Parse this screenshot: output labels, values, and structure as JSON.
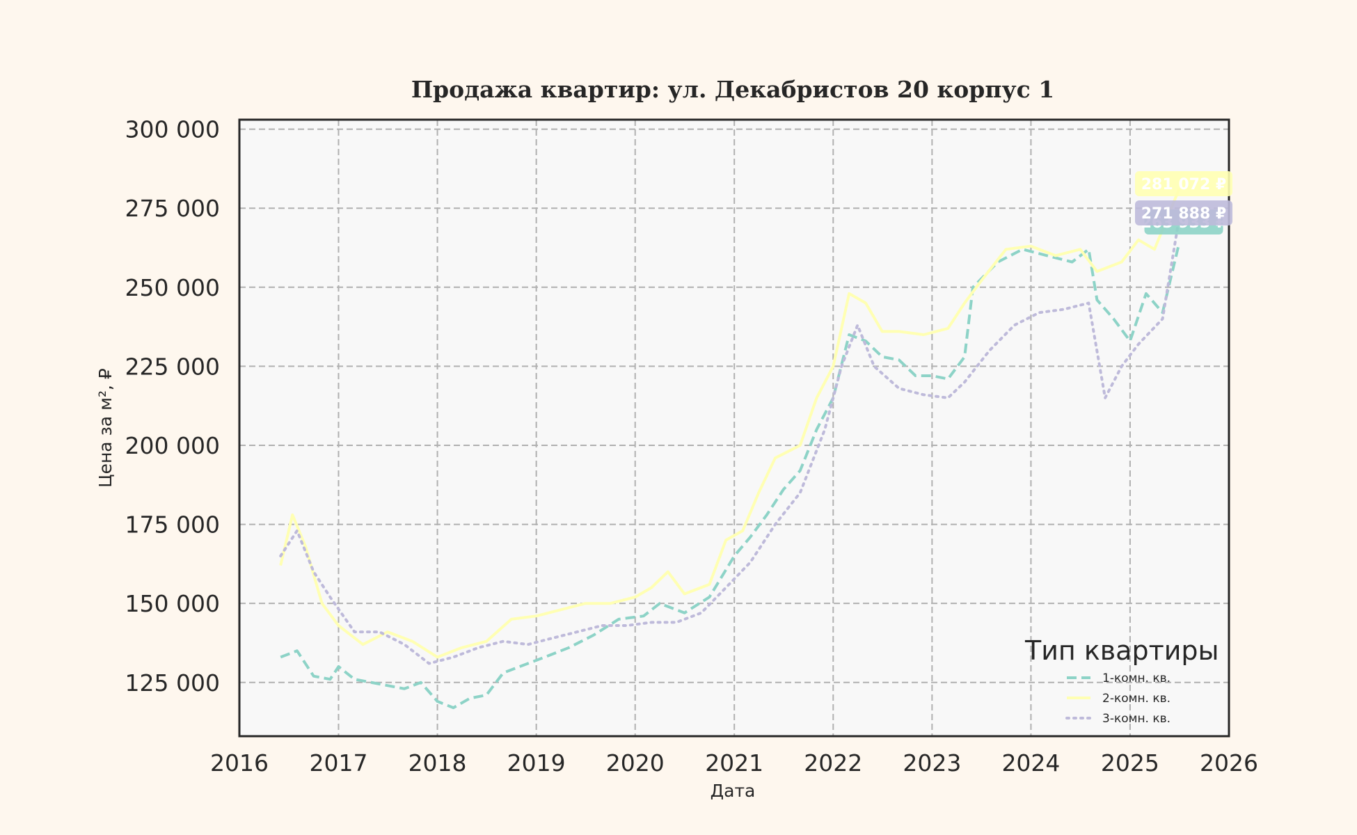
{
  "chart_data": {
    "type": "line",
    "title": "Продажа квартир: ул. Декабристов 20 корпус 1",
    "xlabel": "Дата",
    "ylabel": "Цена за м², ₽",
    "xlim": [
      "2016-01-01",
      "2026-01-01"
    ],
    "ylim": [
      108000,
      303000
    ],
    "x_ticks": [
      "2016",
      "2017",
      "2018",
      "2019",
      "2020",
      "2021",
      "2022",
      "2023",
      "2024",
      "2025",
      "2026"
    ],
    "y_ticks": [
      "125 000",
      "150 000",
      "175 000",
      "200 000",
      "225 000",
      "250 000",
      "275 000",
      "300 000"
    ],
    "grid": true,
    "legend": {
      "title": "Тип квартиры",
      "position": "bottom-right"
    },
    "series": [
      {
        "name": "1-комн. кв.",
        "color": "#8dd3c7",
        "style": "dashed",
        "end_label": "263 933 ₽",
        "points": [
          [
            "2016-06-01",
            133000
          ],
          [
            "2016-08-01",
            135000
          ],
          [
            "2016-10-01",
            127000
          ],
          [
            "2016-12-01",
            126000
          ],
          [
            "2017-01-01",
            130000
          ],
          [
            "2017-03-01",
            126000
          ],
          [
            "2017-06-01",
            124500
          ],
          [
            "2017-09-01",
            123000
          ],
          [
            "2017-11-01",
            125000
          ],
          [
            "2018-01-01",
            119000
          ],
          [
            "2018-03-01",
            117000
          ],
          [
            "2018-05-01",
            120000
          ],
          [
            "2018-07-01",
            121000
          ],
          [
            "2018-09-01",
            128000
          ],
          [
            "2018-12-01",
            131000
          ],
          [
            "2019-02-01",
            133000
          ],
          [
            "2019-05-01",
            136000
          ],
          [
            "2019-08-01",
            140000
          ],
          [
            "2019-11-01",
            145000
          ],
          [
            "2020-02-01",
            146000
          ],
          [
            "2020-04-01",
            150000
          ],
          [
            "2020-07-01",
            147000
          ],
          [
            "2020-10-01",
            152000
          ],
          [
            "2021-01-01",
            165000
          ],
          [
            "2021-03-01",
            171000
          ],
          [
            "2021-05-01",
            178000
          ],
          [
            "2021-07-01",
            186000
          ],
          [
            "2021-09-01",
            192000
          ],
          [
            "2021-11-01",
            205000
          ],
          [
            "2022-01-01",
            215000
          ],
          [
            "2022-03-01",
            235000
          ],
          [
            "2022-05-01",
            233000
          ],
          [
            "2022-07-01",
            228000
          ],
          [
            "2022-09-01",
            227000
          ],
          [
            "2022-11-01",
            222000
          ],
          [
            "2023-01-01",
            222000
          ],
          [
            "2023-03-01",
            221000
          ],
          [
            "2023-05-01",
            228000
          ],
          [
            "2023-06-01",
            250000
          ],
          [
            "2023-09-01",
            258000
          ],
          [
            "2023-12-01",
            262000
          ],
          [
            "2024-03-01",
            260000
          ],
          [
            "2024-06-01",
            258000
          ],
          [
            "2024-08-01",
            262000
          ],
          [
            "2024-09-01",
            246000
          ],
          [
            "2024-11-01",
            240000
          ],
          [
            "2025-01-01",
            233000
          ],
          [
            "2025-03-01",
            248000
          ],
          [
            "2025-05-01",
            242000
          ],
          [
            "2025-07-01",
            263933
          ]
        ]
      },
      {
        "name": "2-комн. кв.",
        "color": "#ffffb3",
        "style": "solid",
        "end_label": "281 072 ₽",
        "points": [
          [
            "2016-06-01",
            162000
          ],
          [
            "2016-07-15",
            178000
          ],
          [
            "2016-09-01",
            168000
          ],
          [
            "2016-11-01",
            150000
          ],
          [
            "2017-01-01",
            143000
          ],
          [
            "2017-04-01",
            137000
          ],
          [
            "2017-07-01",
            141000
          ],
          [
            "2017-10-01",
            138000
          ],
          [
            "2018-01-01",
            133000
          ],
          [
            "2018-04-01",
            136000
          ],
          [
            "2018-07-01",
            138000
          ],
          [
            "2018-10-01",
            145000
          ],
          [
            "2019-01-01",
            146000
          ],
          [
            "2019-04-01",
            148000
          ],
          [
            "2019-07-01",
            150000
          ],
          [
            "2019-10-01",
            150000
          ],
          [
            "2020-01-01",
            152000
          ],
          [
            "2020-03-01",
            155000
          ],
          [
            "2020-05-01",
            160000
          ],
          [
            "2020-07-01",
            153000
          ],
          [
            "2020-10-01",
            156000
          ],
          [
            "2020-12-01",
            170000
          ],
          [
            "2021-02-01",
            173000
          ],
          [
            "2021-04-01",
            185000
          ],
          [
            "2021-06-01",
            196000
          ],
          [
            "2021-09-01",
            200000
          ],
          [
            "2021-11-01",
            215000
          ],
          [
            "2022-01-01",
            225000
          ],
          [
            "2022-03-01",
            248000
          ],
          [
            "2022-05-01",
            245000
          ],
          [
            "2022-07-01",
            236000
          ],
          [
            "2022-09-01",
            236000
          ],
          [
            "2022-12-01",
            235000
          ],
          [
            "2023-03-01",
            237000
          ],
          [
            "2023-05-01",
            245000
          ],
          [
            "2023-07-01",
            252000
          ],
          [
            "2023-10-01",
            262000
          ],
          [
            "2024-01-01",
            263000
          ],
          [
            "2024-04-01",
            260000
          ],
          [
            "2024-07-01",
            262000
          ],
          [
            "2024-09-01",
            255000
          ],
          [
            "2024-12-01",
            258000
          ],
          [
            "2025-02-01",
            265000
          ],
          [
            "2025-04-01",
            262000
          ],
          [
            "2025-07-01",
            281072
          ]
        ]
      },
      {
        "name": "3-комн. кв.",
        "color": "#bebada",
        "style": "dotted",
        "end_label": "271 888 ₽",
        "points": [
          [
            "2016-06-01",
            165000
          ],
          [
            "2016-08-01",
            173000
          ],
          [
            "2016-10-01",
            160000
          ],
          [
            "2016-12-01",
            152000
          ],
          [
            "2017-03-01",
            141000
          ],
          [
            "2017-06-01",
            141000
          ],
          [
            "2017-09-01",
            137000
          ],
          [
            "2017-12-01",
            131000
          ],
          [
            "2018-03-01",
            133000
          ],
          [
            "2018-06-01",
            136000
          ],
          [
            "2018-09-01",
            138000
          ],
          [
            "2018-12-01",
            137000
          ],
          [
            "2019-03-01",
            139000
          ],
          [
            "2019-06-01",
            141000
          ],
          [
            "2019-09-01",
            143000
          ],
          [
            "2019-12-01",
            143000
          ],
          [
            "2020-03-01",
            144000
          ],
          [
            "2020-06-01",
            144000
          ],
          [
            "2020-09-01",
            147000
          ],
          [
            "2020-12-01",
            155000
          ],
          [
            "2021-03-01",
            163000
          ],
          [
            "2021-06-01",
            175000
          ],
          [
            "2021-09-01",
            185000
          ],
          [
            "2021-12-01",
            205000
          ],
          [
            "2022-02-01",
            225000
          ],
          [
            "2022-04-01",
            238000
          ],
          [
            "2022-06-01",
            225000
          ],
          [
            "2022-09-01",
            218000
          ],
          [
            "2022-12-01",
            216000
          ],
          [
            "2023-03-01",
            215000
          ],
          [
            "2023-05-01",
            220000
          ],
          [
            "2023-08-01",
            230000
          ],
          [
            "2023-11-01",
            238000
          ],
          [
            "2024-02-01",
            242000
          ],
          [
            "2024-05-01",
            243000
          ],
          [
            "2024-08-01",
            245000
          ],
          [
            "2024-10-01",
            215000
          ],
          [
            "2024-12-01",
            225000
          ],
          [
            "2025-02-01",
            232000
          ],
          [
            "2025-05-01",
            240000
          ],
          [
            "2025-07-01",
            271888
          ]
        ]
      }
    ]
  }
}
